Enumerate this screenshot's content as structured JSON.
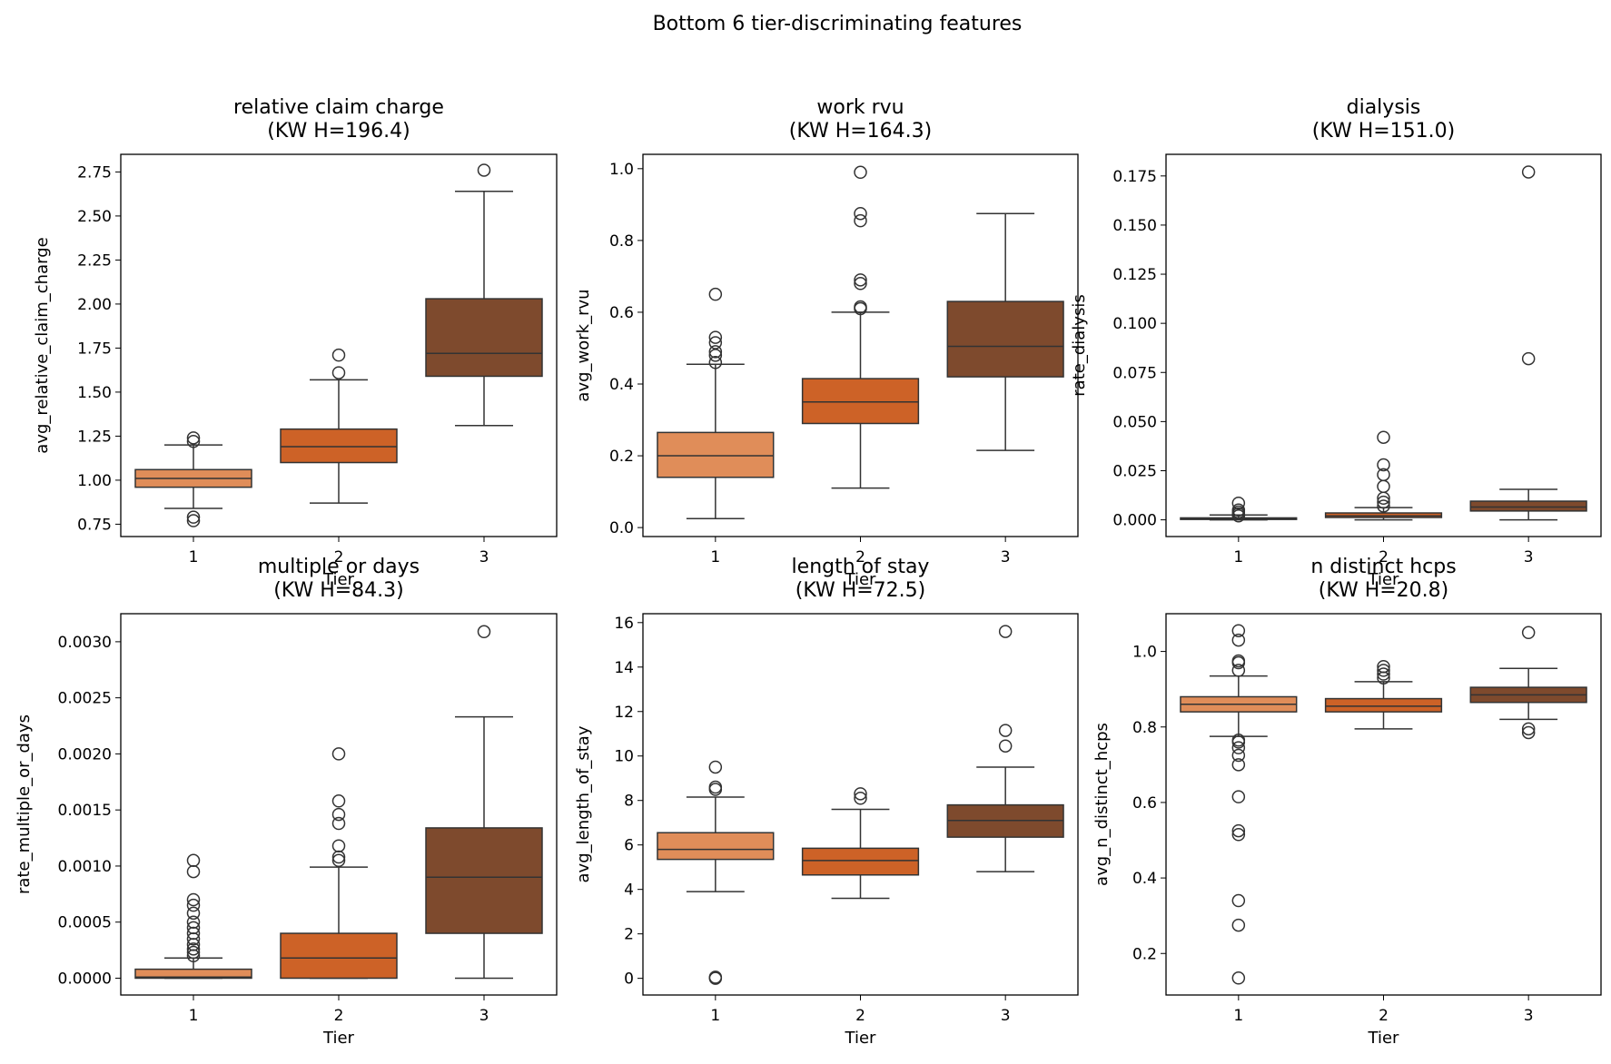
{
  "suptitle": "Bottom 6 tier-discriminating features",
  "colors": {
    "tier1": "#e08d59",
    "tier2": "#cd6227",
    "tier3": "#7e4a2d",
    "line": "#333333"
  },
  "chart_data": [
    {
      "type": "box",
      "title_line1": "relative claim charge",
      "title_line2": "(KW H=196.4)",
      "xlabel": "Tier",
      "ylabel": "avg_relative_claim_charge",
      "categories": [
        "1",
        "2",
        "3"
      ],
      "ylim": [
        0.68,
        2.85
      ],
      "yticks": [
        0.75,
        1.0,
        1.25,
        1.5,
        1.75,
        2.0,
        2.25,
        2.5,
        2.75
      ],
      "ytick_labels": [
        "0.75",
        "1.00",
        "1.25",
        "1.50",
        "1.75",
        "2.00",
        "2.25",
        "2.50",
        "2.75"
      ],
      "boxes": [
        {
          "tier": "1",
          "whislo": 0.84,
          "q1": 0.96,
          "med": 1.01,
          "q3": 1.06,
          "whishi": 1.2,
          "fliers": [
            0.77,
            0.79,
            1.22,
            1.24
          ]
        },
        {
          "tier": "2",
          "whislo": 0.87,
          "q1": 1.1,
          "med": 1.19,
          "q3": 1.29,
          "whishi": 1.57,
          "fliers": [
            1.61,
            1.71
          ]
        },
        {
          "tier": "3",
          "whislo": 1.31,
          "q1": 1.59,
          "med": 1.72,
          "q3": 2.03,
          "whishi": 2.64,
          "fliers": [
            2.76
          ]
        }
      ]
    },
    {
      "type": "box",
      "title_line1": "work rvu",
      "title_line2": "(KW H=164.3)",
      "xlabel": "Tier",
      "ylabel": "avg_work_rvu",
      "categories": [
        "1",
        "2",
        "3"
      ],
      "ylim": [
        -0.025,
        1.04
      ],
      "yticks": [
        0,
        0.2,
        0.4,
        0.6,
        0.8,
        1.0
      ],
      "ytick_labels": [
        "0.0",
        "0.2",
        "0.4",
        "0.6",
        "0.8",
        "1.0"
      ],
      "boxes": [
        {
          "tier": "1",
          "whislo": 0.025,
          "q1": 0.14,
          "med": 0.2,
          "q3": 0.265,
          "whishi": 0.455,
          "fliers": [
            0.46,
            0.48,
            0.49,
            0.515,
            0.53,
            0.65
          ]
        },
        {
          "tier": "2",
          "whislo": 0.11,
          "q1": 0.29,
          "med": 0.35,
          "q3": 0.415,
          "whishi": 0.6,
          "fliers": [
            0.61,
            0.615,
            0.68,
            0.69,
            0.855,
            0.875,
            0.99
          ]
        },
        {
          "tier": "3",
          "whislo": 0.215,
          "q1": 0.42,
          "med": 0.505,
          "q3": 0.63,
          "whishi": 0.875,
          "fliers": []
        }
      ]
    },
    {
      "type": "box",
      "title_line1": "dialysis",
      "title_line2": "(KW H=151.0)",
      "xlabel": "Tier",
      "ylabel": "rate_dialysis",
      "categories": [
        "1",
        "2",
        "3"
      ],
      "ylim": [
        -0.0085,
        0.186
      ],
      "yticks": [
        0,
        0.025,
        0.05,
        0.075,
        0.1,
        0.125,
        0.15,
        0.175
      ],
      "ytick_labels": [
        "0.000",
        "0.025",
        "0.050",
        "0.075",
        "0.100",
        "0.125",
        "0.150",
        "0.175"
      ],
      "boxes": [
        {
          "tier": "1",
          "whislo": 0.0,
          "q1": 0.0002,
          "med": 0.0005,
          "q3": 0.001,
          "whishi": 0.0025,
          "fliers": [
            0.002,
            0.003,
            0.004,
            0.005,
            0.0085
          ]
        },
        {
          "tier": "2",
          "whislo": 0.0,
          "q1": 0.0012,
          "med": 0.002,
          "q3": 0.0035,
          "whishi": 0.0062,
          "fliers": [
            0.007,
            0.009,
            0.011,
            0.017,
            0.023,
            0.028,
            0.042
          ]
        },
        {
          "tier": "3",
          "whislo": 0.0,
          "q1": 0.0045,
          "med": 0.0065,
          "q3": 0.0095,
          "whishi": 0.0155,
          "fliers": [
            0.082,
            0.177
          ]
        }
      ]
    },
    {
      "type": "box",
      "title_line1": "multiple or days",
      "title_line2": "(KW H=84.3)",
      "xlabel": "Tier",
      "ylabel": "rate_multiple_or_days",
      "categories": [
        "1",
        "2",
        "3"
      ],
      "ylim": [
        -0.00015,
        0.00325
      ],
      "yticks": [
        0,
        0.0005,
        0.001,
        0.0015,
        0.002,
        0.0025,
        0.003
      ],
      "ytick_labels": [
        "0.0000",
        "0.0005",
        "0.0010",
        "0.0015",
        "0.0020",
        "0.0025",
        "0.0030"
      ],
      "boxes": [
        {
          "tier": "1",
          "whislo": 0.0,
          "q1": 0.0,
          "med": 1e-05,
          "q3": 8e-05,
          "whishi": 0.00018,
          "fliers": [
            0.0002,
            0.00023,
            0.00026,
            0.0003,
            0.00035,
            0.0004,
            0.00045,
            0.0005,
            0.00058,
            0.00065,
            0.0007,
            0.00095,
            0.00105
          ]
        },
        {
          "tier": "2",
          "whislo": 0.0,
          "q1": 0.0,
          "med": 0.00018,
          "q3": 0.0004,
          "whishi": 0.00099,
          "fliers": [
            0.00105,
            0.00108,
            0.00118,
            0.00138,
            0.00146,
            0.00158,
            0.002
          ]
        },
        {
          "tier": "3",
          "whislo": 0.0,
          "q1": 0.0004,
          "med": 0.0009,
          "q3": 0.00134,
          "whishi": 0.00233,
          "fliers": [
            0.00309
          ]
        }
      ]
    },
    {
      "type": "box",
      "title_line1": "length of stay",
      "title_line2": "(KW H=72.5)",
      "xlabel": "Tier",
      "ylabel": "avg_length_of_stay",
      "categories": [
        "1",
        "2",
        "3"
      ],
      "ylim": [
        -0.75,
        16.4
      ],
      "yticks": [
        0,
        2,
        4,
        6,
        8,
        10,
        12,
        14,
        16
      ],
      "ytick_labels": [
        "0",
        "2",
        "4",
        "6",
        "8",
        "10",
        "12",
        "14",
        "16"
      ],
      "boxes": [
        {
          "tier": "1",
          "whislo": 3.9,
          "q1": 5.35,
          "med": 5.8,
          "q3": 6.55,
          "whishi": 8.15,
          "fliers": [
            0.0,
            0.05,
            8.5,
            8.6,
            9.5
          ]
        },
        {
          "tier": "2",
          "whislo": 3.6,
          "q1": 4.65,
          "med": 5.3,
          "q3": 5.85,
          "whishi": 7.6,
          "fliers": [
            8.1,
            8.3
          ]
        },
        {
          "tier": "3",
          "whislo": 4.8,
          "q1": 6.35,
          "med": 7.1,
          "q3": 7.8,
          "whishi": 9.5,
          "fliers": [
            10.45,
            11.15,
            15.6
          ]
        }
      ]
    },
    {
      "type": "box",
      "title_line1": "n distinct hcps",
      "title_line2": "(KW H=20.8)",
      "xlabel": "Tier",
      "ylabel": "avg_n_distinct_hcps",
      "categories": [
        "1",
        "2",
        "3"
      ],
      "ylim": [
        0.09,
        1.1
      ],
      "yticks": [
        0.2,
        0.4,
        0.6,
        0.8,
        1.0
      ],
      "ytick_labels": [
        "0.2",
        "0.4",
        "0.6",
        "0.8",
        "1.0"
      ],
      "boxes": [
        {
          "tier": "1",
          "whislo": 0.775,
          "q1": 0.84,
          "med": 0.86,
          "q3": 0.88,
          "whishi": 0.935,
          "fliers": [
            0.135,
            0.275,
            0.34,
            0.515,
            0.525,
            0.615,
            0.7,
            0.725,
            0.745,
            0.76,
            0.765,
            0.95,
            0.97,
            0.975,
            1.03,
            1.055
          ]
        },
        {
          "tier": "2",
          "whislo": 0.795,
          "q1": 0.84,
          "med": 0.855,
          "q3": 0.875,
          "whishi": 0.92,
          "fliers": [
            0.93,
            0.94,
            0.95,
            0.96
          ]
        },
        {
          "tier": "3",
          "whislo": 0.82,
          "q1": 0.865,
          "med": 0.885,
          "q3": 0.905,
          "whishi": 0.955,
          "fliers": [
            0.785,
            0.795,
            1.05
          ]
        }
      ]
    }
  ]
}
